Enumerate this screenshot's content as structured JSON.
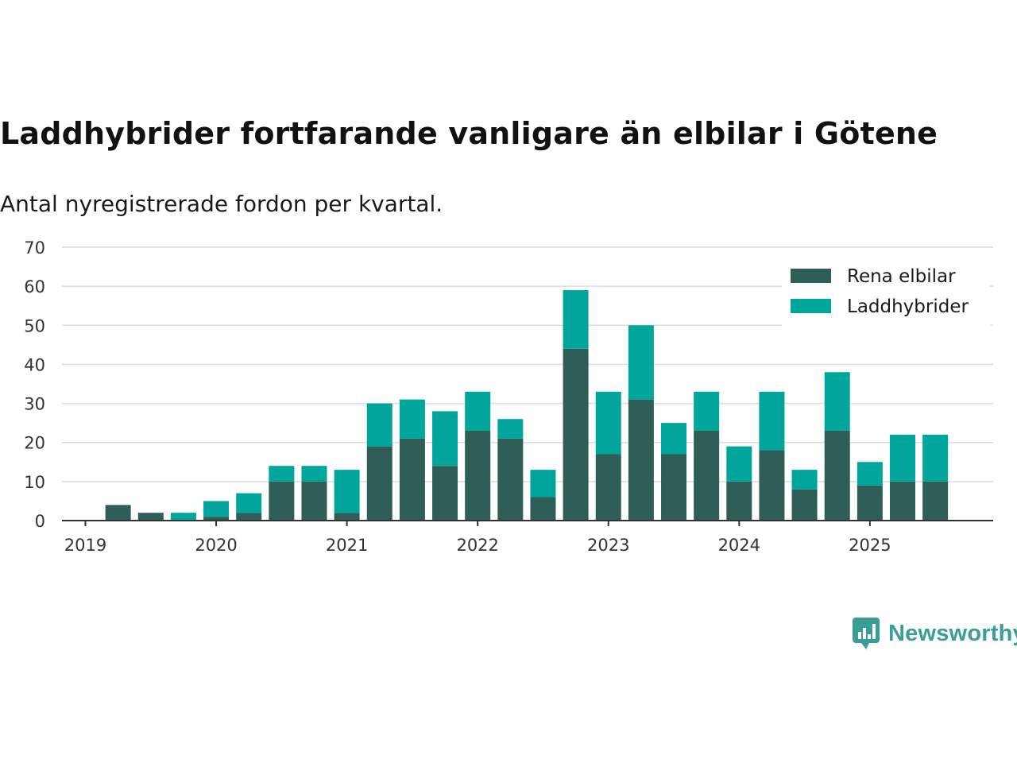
{
  "title": "Laddhybrider fortfarande vanligare än elbilar i Götene",
  "subtitle": "Antal nyregistrerade fordon per kvartal.",
  "brand": "Newsworthy",
  "colors": {
    "rena": "#2e5e57",
    "ladd": "#00a59b",
    "brand": "#3a9e96"
  },
  "chart_data": {
    "type": "bar",
    "stacked": true,
    "title": "Laddhybrider fortfarande vanligare än elbilar i Götene",
    "subtitle": "Antal nyregistrerade fordon per kvartal.",
    "xlabel": "",
    "ylabel": "",
    "ylim": [
      0,
      70
    ],
    "yticks": [
      0,
      10,
      20,
      30,
      40,
      50,
      60,
      70
    ],
    "xtick_labels": [
      "2019",
      "2020",
      "2021",
      "2022",
      "2023",
      "2024",
      "2025"
    ],
    "categories": [
      "2019 Q1",
      "2019 Q2",
      "2019 Q3",
      "2019 Q4",
      "2020 Q1",
      "2020 Q2",
      "2020 Q3",
      "2020 Q4",
      "2021 Q1",
      "2021 Q2",
      "2021 Q3",
      "2021 Q4",
      "2022 Q1",
      "2022 Q2",
      "2022 Q3",
      "2022 Q4",
      "2023 Q1",
      "2023 Q2",
      "2023 Q3",
      "2023 Q4",
      "2024 Q1",
      "2024 Q2",
      "2024 Q3",
      "2024 Q4",
      "2025 Q1",
      "2025 Q2",
      "2025 Q3"
    ],
    "series": [
      {
        "name": "Rena elbilar",
        "values": [
          0,
          4,
          2,
          0,
          1,
          2,
          10,
          10,
          2,
          19,
          21,
          14,
          23,
          21,
          6,
          44,
          17,
          31,
          17,
          23,
          10,
          18,
          8,
          23,
          9,
          10,
          10
        ]
      },
      {
        "name": "Laddhybrider",
        "values": [
          0,
          0,
          0,
          2,
          4,
          5,
          4,
          4,
          11,
          11,
          10,
          14,
          10,
          5,
          7,
          15,
          16,
          19,
          8,
          10,
          9,
          15,
          5,
          15,
          6,
          12,
          12
        ]
      }
    ],
    "grid": true,
    "legend_position": "top-right"
  }
}
